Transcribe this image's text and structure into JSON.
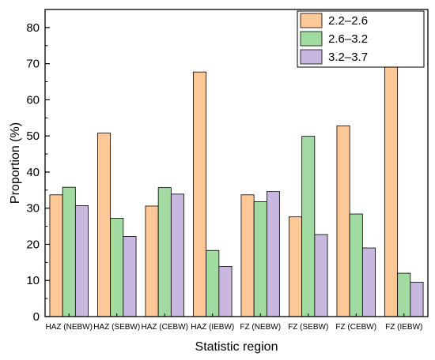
{
  "chart_data": {
    "type": "bar",
    "xlabel": "Statistic region",
    "ylabel": "Proportion (%)",
    "ylim": [
      0,
      85
    ],
    "yticks": [
      0,
      10,
      20,
      30,
      40,
      50,
      60,
      70,
      80
    ],
    "categories": [
      "HAZ (NEBW)",
      "HAZ (SEBW)",
      "HAZ (CEBW)",
      "HAZ  (IEBW)",
      "FZ (NEBW)",
      "FZ (SEBW)",
      "FZ (CEBW)",
      "FZ (IEBW)"
    ],
    "series": [
      {
        "name": "2.2–2.6",
        "color": "#FFC896",
        "values": [
          33.7,
          50.8,
          30.6,
          67.7,
          33.7,
          27.6,
          52.8,
          78.7
        ]
      },
      {
        "name": "2.6–3.2",
        "color": "#A2DBA2",
        "values": [
          35.8,
          27.2,
          35.7,
          18.3,
          31.8,
          49.9,
          28.4,
          12.0
        ]
      },
      {
        "name": "3.2–3.7",
        "color": "#C8B8E0",
        "values": [
          30.7,
          22.2,
          33.9,
          13.9,
          34.6,
          22.7,
          19.0,
          9.5
        ]
      }
    ],
    "grid": false,
    "legend_position": "top-right"
  }
}
